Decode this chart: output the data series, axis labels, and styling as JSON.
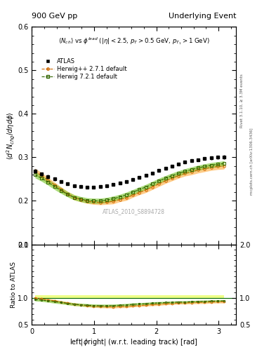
{
  "title_left": "900 GeV pp",
  "title_right": "Underlying Event",
  "annotation": "ATLAS_2010_S8894728",
  "ylabel_main": "$\\langle d^2 N_{chg}/d\\eta d\\phi \\rangle$",
  "ylabel_ratio": "Ratio to ATLAS",
  "xlabel": "left|$\\phi$right| (w.r.t. leading track) [rad]",
  "description_line1": "$\\langle N_{ch} \\rangle$ vs $\\phi^{lead}$ ($|\\eta| < 2.5$, $p_T > 0.5$ GeV, $p_{T_1} > 1$ GeV)",
  "rivet_label": "Rivet 3.1.10, ≥ 3.3M events",
  "arxiv_label": "mcplots.cern.ch [arXiv:1306.3436]",
  "ylim_main": [
    0.1,
    0.6
  ],
  "ylim_ratio": [
    0.5,
    2.0
  ],
  "xlim": [
    0.0,
    3.28
  ],
  "atlas_x": [
    0.052,
    0.157,
    0.262,
    0.366,
    0.471,
    0.576,
    0.681,
    0.785,
    0.89,
    0.995,
    1.1,
    1.204,
    1.309,
    1.414,
    1.518,
    1.623,
    1.728,
    1.833,
    1.937,
    2.042,
    2.147,
    2.252,
    2.356,
    2.461,
    2.566,
    2.67,
    2.775,
    2.88,
    2.985,
    3.089
  ],
  "atlas_y": [
    0.268,
    0.262,
    0.256,
    0.25,
    0.244,
    0.239,
    0.235,
    0.233,
    0.232,
    0.232,
    0.233,
    0.235,
    0.238,
    0.241,
    0.245,
    0.249,
    0.254,
    0.259,
    0.264,
    0.27,
    0.275,
    0.28,
    0.284,
    0.289,
    0.292,
    0.295,
    0.297,
    0.299,
    0.3,
    0.301
  ],
  "atlas_yerr": [
    0.005,
    0.004,
    0.004,
    0.004,
    0.003,
    0.003,
    0.003,
    0.003,
    0.003,
    0.003,
    0.003,
    0.003,
    0.003,
    0.003,
    0.003,
    0.003,
    0.003,
    0.003,
    0.003,
    0.003,
    0.003,
    0.003,
    0.003,
    0.003,
    0.003,
    0.003,
    0.003,
    0.004,
    0.004,
    0.005
  ],
  "herwig_x": [
    0.052,
    0.157,
    0.262,
    0.366,
    0.471,
    0.576,
    0.681,
    0.785,
    0.89,
    0.995,
    1.1,
    1.204,
    1.309,
    1.414,
    1.518,
    1.623,
    1.728,
    1.833,
    1.937,
    2.042,
    2.147,
    2.252,
    2.356,
    2.461,
    2.566,
    2.67,
    2.775,
    2.88,
    2.985,
    3.089
  ],
  "herwig_pp_y": [
    0.268,
    0.258,
    0.247,
    0.237,
    0.226,
    0.216,
    0.208,
    0.203,
    0.199,
    0.197,
    0.196,
    0.197,
    0.199,
    0.203,
    0.207,
    0.213,
    0.219,
    0.225,
    0.232,
    0.239,
    0.246,
    0.252,
    0.258,
    0.263,
    0.267,
    0.271,
    0.274,
    0.277,
    0.279,
    0.28
  ],
  "herwig_72_y": [
    0.26,
    0.252,
    0.243,
    0.233,
    0.224,
    0.215,
    0.208,
    0.204,
    0.201,
    0.2,
    0.2,
    0.202,
    0.205,
    0.209,
    0.214,
    0.22,
    0.226,
    0.232,
    0.239,
    0.246,
    0.252,
    0.258,
    0.263,
    0.268,
    0.272,
    0.276,
    0.279,
    0.282,
    0.284,
    0.286
  ],
  "herwig_pp_band_upper": [
    0.275,
    0.265,
    0.254,
    0.243,
    0.232,
    0.222,
    0.214,
    0.208,
    0.204,
    0.202,
    0.201,
    0.202,
    0.205,
    0.208,
    0.213,
    0.218,
    0.224,
    0.231,
    0.238,
    0.245,
    0.252,
    0.258,
    0.264,
    0.269,
    0.274,
    0.278,
    0.281,
    0.284,
    0.286,
    0.287
  ],
  "herwig_pp_band_lower": [
    0.261,
    0.251,
    0.24,
    0.231,
    0.22,
    0.21,
    0.202,
    0.198,
    0.194,
    0.192,
    0.191,
    0.192,
    0.193,
    0.198,
    0.201,
    0.208,
    0.214,
    0.219,
    0.226,
    0.233,
    0.24,
    0.246,
    0.252,
    0.257,
    0.26,
    0.264,
    0.267,
    0.27,
    0.272,
    0.273
  ],
  "herwig_72_band_upper": [
    0.267,
    0.259,
    0.25,
    0.24,
    0.231,
    0.221,
    0.214,
    0.21,
    0.207,
    0.206,
    0.206,
    0.208,
    0.211,
    0.215,
    0.22,
    0.226,
    0.232,
    0.238,
    0.245,
    0.252,
    0.258,
    0.264,
    0.269,
    0.274,
    0.278,
    0.282,
    0.285,
    0.288,
    0.29,
    0.292
  ],
  "herwig_72_band_lower": [
    0.253,
    0.245,
    0.236,
    0.226,
    0.217,
    0.209,
    0.202,
    0.198,
    0.195,
    0.194,
    0.194,
    0.196,
    0.199,
    0.203,
    0.208,
    0.214,
    0.22,
    0.226,
    0.233,
    0.24,
    0.246,
    0.252,
    0.257,
    0.262,
    0.266,
    0.27,
    0.273,
    0.276,
    0.278,
    0.28
  ],
  "ratio_herwig_pp": [
    1.0,
    0.984,
    0.965,
    0.948,
    0.926,
    0.904,
    0.885,
    0.872,
    0.858,
    0.849,
    0.842,
    0.838,
    0.836,
    0.842,
    0.845,
    0.855,
    0.862,
    0.869,
    0.879,
    0.885,
    0.895,
    0.9,
    0.908,
    0.91,
    0.915,
    0.919,
    0.922,
    0.927,
    0.93,
    0.93
  ],
  "ratio_herwig_72": [
    0.97,
    0.962,
    0.949,
    0.932,
    0.918,
    0.9,
    0.885,
    0.875,
    0.867,
    0.862,
    0.858,
    0.859,
    0.861,
    0.867,
    0.873,
    0.883,
    0.89,
    0.896,
    0.905,
    0.911,
    0.917,
    0.921,
    0.926,
    0.927,
    0.932,
    0.936,
    0.94,
    0.943,
    0.947,
    0.95
  ],
  "ratio_band_pp_upper": [
    1.025,
    1.008,
    0.992,
    0.972,
    0.95,
    0.929,
    0.91,
    0.894,
    0.88,
    0.872,
    0.865,
    0.86,
    0.859,
    0.864,
    0.869,
    0.876,
    0.882,
    0.891,
    0.901,
    0.908,
    0.917,
    0.921,
    0.93,
    0.932,
    0.938,
    0.942,
    0.947,
    0.95,
    0.953,
    0.954
  ],
  "ratio_band_pp_lower": [
    0.975,
    0.958,
    0.938,
    0.924,
    0.902,
    0.879,
    0.86,
    0.85,
    0.836,
    0.826,
    0.819,
    0.816,
    0.813,
    0.82,
    0.821,
    0.834,
    0.842,
    0.847,
    0.857,
    0.862,
    0.873,
    0.879,
    0.886,
    0.888,
    0.892,
    0.896,
    0.897,
    0.904,
    0.907,
    0.906
  ],
  "ratio_band_72_upper": [
    0.996,
    0.988,
    0.977,
    0.961,
    0.945,
    0.926,
    0.911,
    0.903,
    0.895,
    0.888,
    0.885,
    0.885,
    0.886,
    0.891,
    0.898,
    0.909,
    0.913,
    0.919,
    0.928,
    0.934,
    0.938,
    0.943,
    0.948,
    0.949,
    0.953,
    0.957,
    0.961,
    0.963,
    0.967,
    0.969
  ],
  "ratio_band_72_lower": [
    0.944,
    0.936,
    0.921,
    0.903,
    0.891,
    0.874,
    0.859,
    0.851,
    0.839,
    0.836,
    0.831,
    0.833,
    0.836,
    0.843,
    0.848,
    0.857,
    0.867,
    0.873,
    0.882,
    0.888,
    0.896,
    0.899,
    0.904,
    0.905,
    0.911,
    0.915,
    0.919,
    0.923,
    0.927,
    0.931
  ],
  "ratio_ref_band_upper": 1.05,
  "ratio_ref_band_lower": 1.0,
  "atlas_color": "#000000",
  "herwig_pp_color": "#cc6600",
  "herwig_72_color": "#336600",
  "herwig_pp_band_color": "#ffcc88",
  "herwig_72_band_color": "#88cc44",
  "ratio_ref_band_color": "#eeff88"
}
